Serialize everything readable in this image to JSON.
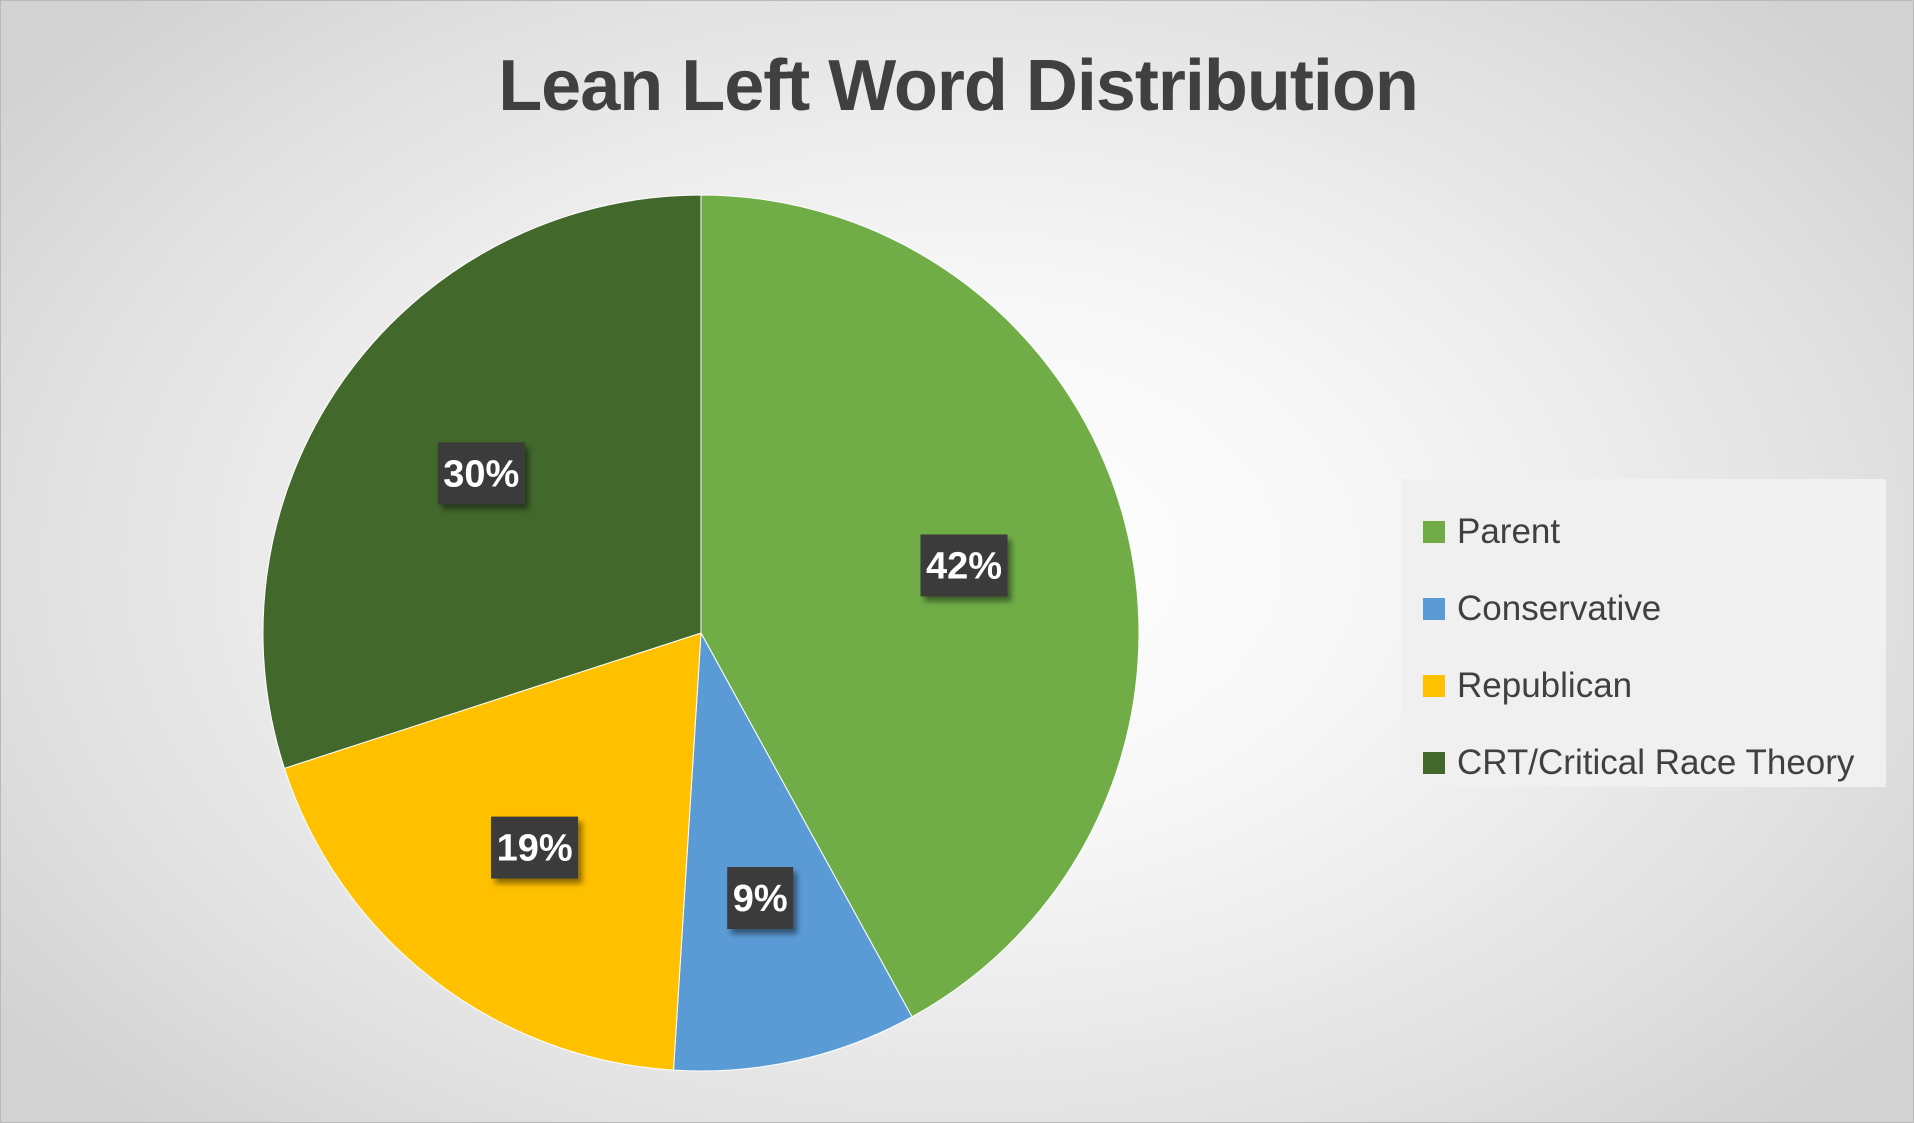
{
  "chart_data": {
    "type": "pie",
    "title": "Lean Left Word Distribution",
    "categories": [
      "Parent",
      "Conservative",
      "Republican",
      "CRT/Critical Race Theory"
    ],
    "values": [
      42,
      9,
      19,
      30
    ],
    "data_labels": [
      "42%",
      "9%",
      "19%",
      "30%"
    ],
    "colors": [
      "#70AD47",
      "#5B9BD5",
      "#FFC000",
      "#43682B"
    ],
    "legend_position": "right",
    "start_angle": "12 o'clock",
    "direction": "clockwise"
  }
}
